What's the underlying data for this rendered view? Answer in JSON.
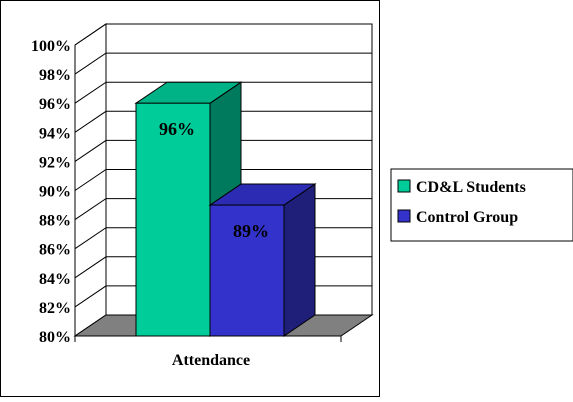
{
  "chart_data": {
    "type": "bar",
    "categories": [
      "Attendance"
    ],
    "series": [
      {
        "name": "CD&L Students",
        "values": [
          96
        ]
      },
      {
        "name": "Control Group",
        "values": [
          89
        ]
      }
    ],
    "data_labels": [
      "96%",
      "89%"
    ],
    "xlabel": "Attendance",
    "ylabel": "",
    "ylim": [
      80,
      100
    ],
    "ytick_step": 2,
    "ytick_labels": [
      "80%",
      "82%",
      "84%",
      "86%",
      "88%",
      "90%",
      "92%",
      "94%",
      "96%",
      "98%",
      "100%"
    ],
    "grid": true,
    "three_d": true,
    "legend": "right",
    "colors": {
      "series": [
        "#00CC99",
        "#3333CC"
      ],
      "series_side": [
        "#007A5C",
        "#1F1F7A"
      ],
      "series_top": [
        "#00B386",
        "#2B2BB3"
      ],
      "floor": "#808080"
    }
  }
}
